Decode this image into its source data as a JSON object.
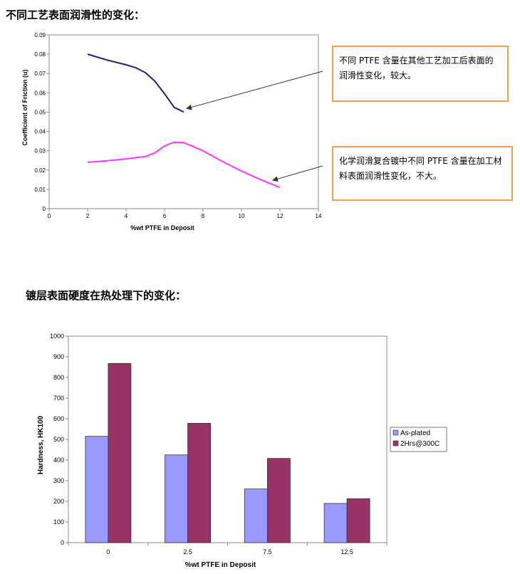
{
  "headings": {
    "section1": "不同工艺表面润滑性的变化：",
    "section2": "镀层表面硬度在热处理下的变化："
  },
  "notes": {
    "note1": "不同 PTFE 含量在其他工艺加工后表面的润滑性变化，较大。",
    "note2": "化学润滑复合镀中不同 PTFE 含量在加工材料表面润滑性变化，不大。"
  },
  "chart_data": [
    {
      "type": "line",
      "xlabel": "%wt PTFE in Deposit",
      "ylabel": "Coefficient of Friction (u)",
      "xlim": [
        0,
        14
      ],
      "ylim": [
        0,
        0.09
      ],
      "x_ticks": [
        "0",
        "2",
        "4",
        "6",
        "8",
        "10",
        "12",
        "14"
      ],
      "y_ticks": [
        "0",
        "0.01",
        "0.02",
        "0.03",
        "0.04",
        "0.05",
        "0.06",
        "0.07",
        "0.08",
        "0.09"
      ],
      "grid": false,
      "series": [
        {
          "color": "#1f1f7a",
          "x": [
            2,
            3,
            4,
            4.5,
            5,
            5.5,
            6,
            6.5,
            7
          ],
          "y": [
            0.08,
            0.077,
            0.0745,
            0.073,
            0.0705,
            0.066,
            0.0595,
            0.0525,
            0.05
          ]
        },
        {
          "color": "#ff33ff",
          "x": [
            2,
            3,
            4,
            5,
            5.5,
            6,
            6.5,
            7,
            8,
            9,
            10,
            11,
            12
          ],
          "y": [
            0.024,
            0.0248,
            0.0258,
            0.027,
            0.029,
            0.0325,
            0.0345,
            0.0342,
            0.03,
            0.0245,
            0.0195,
            0.015,
            0.011
          ]
        }
      ]
    },
    {
      "type": "bar",
      "xlabel": "%wt PTFE in Deposit",
      "ylabel": "Hardness, HK100",
      "ylim": [
        0,
        1000
      ],
      "y_ticks": [
        "0",
        "100",
        "200",
        "300",
        "400",
        "500",
        "600",
        "700",
        "800",
        "900",
        "1000"
      ],
      "categories": [
        "0",
        "2.5",
        "7.5",
        "12.5"
      ],
      "grid": false,
      "legend_position": "right",
      "series": [
        {
          "name": "As-plated",
          "color": "#9999ff",
          "values": [
            515,
            425,
            260,
            190
          ]
        },
        {
          "name": "2Hrs@300C",
          "color": "#993366",
          "values": [
            868,
            578,
            408,
            213
          ]
        }
      ]
    }
  ]
}
